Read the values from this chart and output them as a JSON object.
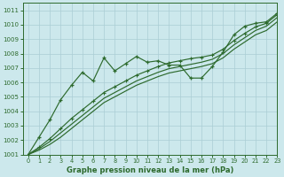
{
  "title": "Graphe pression niveau de la mer (hPa)",
  "bg_color": "#cce8ec",
  "grid_color": "#aacdd4",
  "line_color": "#2d6a2d",
  "xlim": [
    -0.5,
    23
  ],
  "ylim": [
    1001,
    1011.5
  ],
  "xticks": [
    0,
    1,
    2,
    3,
    4,
    5,
    6,
    7,
    8,
    9,
    10,
    11,
    12,
    13,
    14,
    15,
    16,
    17,
    18,
    19,
    20,
    21,
    22,
    23
  ],
  "yticks": [
    1001,
    1002,
    1003,
    1004,
    1005,
    1006,
    1007,
    1008,
    1009,
    1010,
    1011
  ],
  "line_zigzag": [
    1001.0,
    1002.2,
    1003.4,
    1004.8,
    1005.8,
    1006.7,
    1006.1,
    1007.7,
    1006.8,
    1007.3,
    1007.8,
    1007.4,
    1007.5,
    1007.2,
    1007.2,
    1006.3,
    1006.3,
    1007.1,
    1008.1,
    1009.3,
    1009.9,
    1010.1,
    1010.2,
    1010.8
  ],
  "line_straight1": [
    1001.0,
    1001.5,
    1002.1,
    1002.8,
    1003.5,
    1004.1,
    1004.7,
    1005.3,
    1005.7,
    1006.1,
    1006.5,
    1006.8,
    1007.1,
    1007.35,
    1007.5,
    1007.65,
    1007.75,
    1007.9,
    1008.3,
    1008.9,
    1009.4,
    1009.85,
    1010.1,
    1010.7
  ],
  "line_straight2": [
    1001.0,
    1001.4,
    1001.9,
    1002.5,
    1003.1,
    1003.7,
    1004.3,
    1004.9,
    1005.3,
    1005.7,
    1006.1,
    1006.4,
    1006.7,
    1006.95,
    1007.1,
    1007.25,
    1007.4,
    1007.6,
    1008.0,
    1008.6,
    1009.1,
    1009.6,
    1009.9,
    1010.5
  ],
  "line_straight3": [
    1001.0,
    1001.3,
    1001.7,
    1002.2,
    1002.8,
    1003.4,
    1004.0,
    1004.6,
    1005.0,
    1005.4,
    1005.8,
    1006.1,
    1006.4,
    1006.65,
    1006.8,
    1006.95,
    1007.1,
    1007.3,
    1007.7,
    1008.3,
    1008.8,
    1009.3,
    1009.6,
    1010.2
  ]
}
